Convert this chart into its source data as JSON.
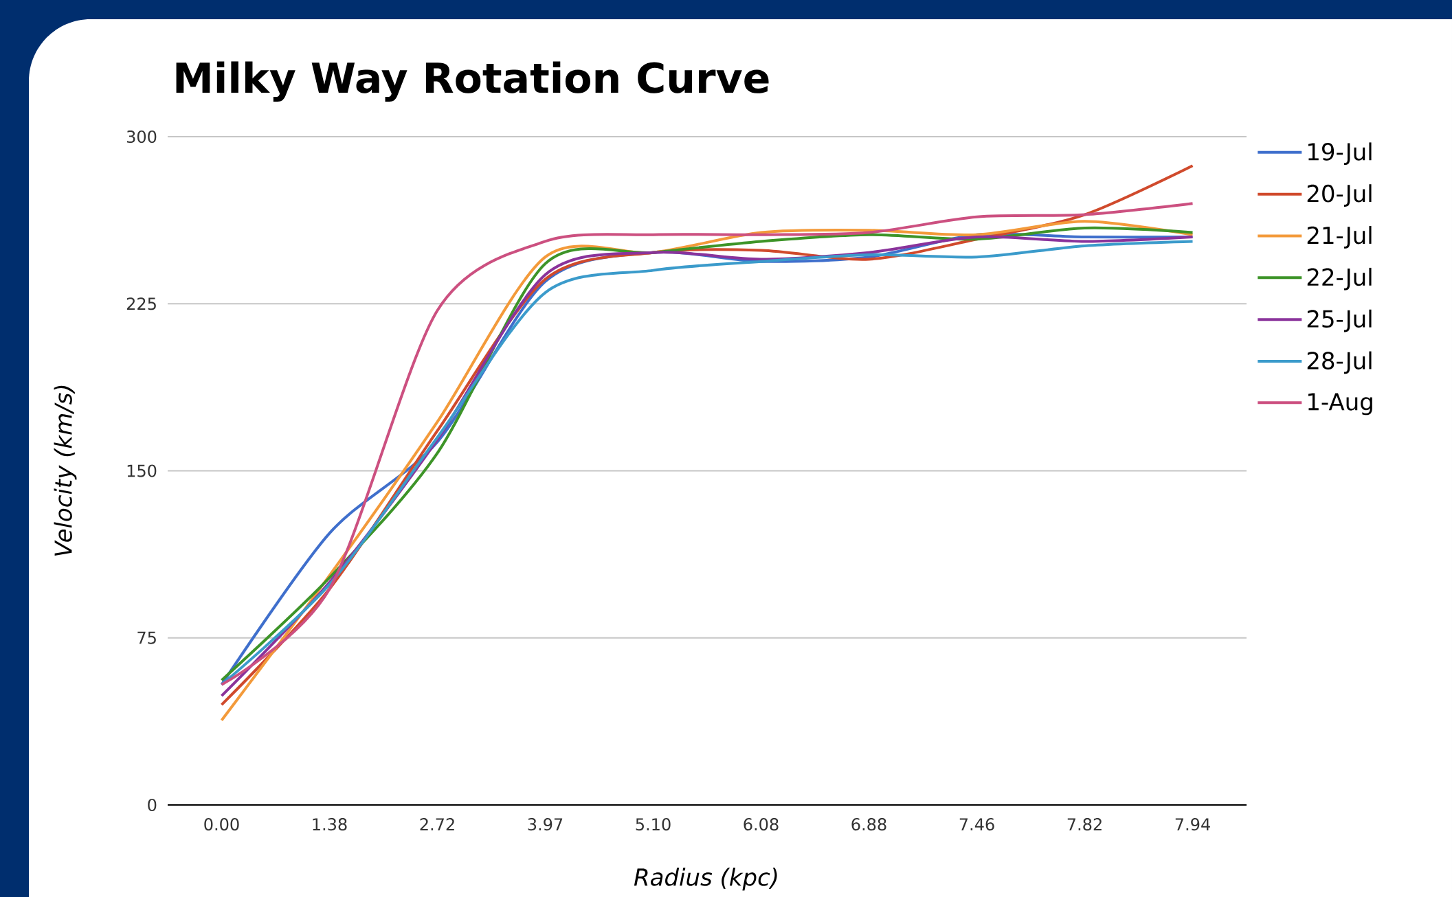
{
  "chart_data": {
    "type": "line",
    "title": "Milky Way Rotation Curve",
    "xlabel": "Radius (kpc)",
    "ylabel": "Velocity (km/s)",
    "categories": [
      "0.00",
      "1.38",
      "2.72",
      "3.97",
      "5.10",
      "6.08",
      "6.88",
      "7.46",
      "7.82",
      "7.94"
    ],
    "ylim": [
      0,
      300
    ],
    "yticks": [
      0,
      75,
      150,
      225,
      300
    ],
    "grid": "y",
    "legend": "right",
    "line_style": "solid",
    "series": [
      {
        "name": "19-Jul",
        "color": "#3f6fcc",
        "values": [
          54,
          122,
          163,
          235,
          248,
          244,
          246,
          256,
          255,
          255
        ]
      },
      {
        "name": "20-Jul",
        "color": "#d04a2c",
        "values": [
          45,
          97,
          168,
          236,
          248,
          249,
          245,
          254,
          265,
          287
        ]
      },
      {
        "name": "21-Jul",
        "color": "#f39a3a",
        "values": [
          38,
          103,
          172,
          246,
          248,
          257,
          258,
          256,
          262,
          256
        ]
      },
      {
        "name": "22-Jul",
        "color": "#3d9428",
        "values": [
          56,
          102,
          158,
          243,
          248,
          253,
          256,
          254,
          259,
          257
        ]
      },
      {
        "name": "25-Jul",
        "color": "#8a339b",
        "values": [
          49,
          100,
          164,
          238,
          248,
          245,
          248,
          255,
          253,
          255
        ]
      },
      {
        "name": "28-Jul",
        "color": "#3b9bcb",
        "values": [
          54,
          99,
          165,
          230,
          240,
          244,
          247,
          246,
          251,
          253
        ]
      },
      {
        "name": "1-Aug",
        "color": "#cc5080",
        "values": [
          54,
          97,
          222,
          253,
          256,
          256,
          257,
          264,
          265,
          270
        ]
      }
    ]
  }
}
